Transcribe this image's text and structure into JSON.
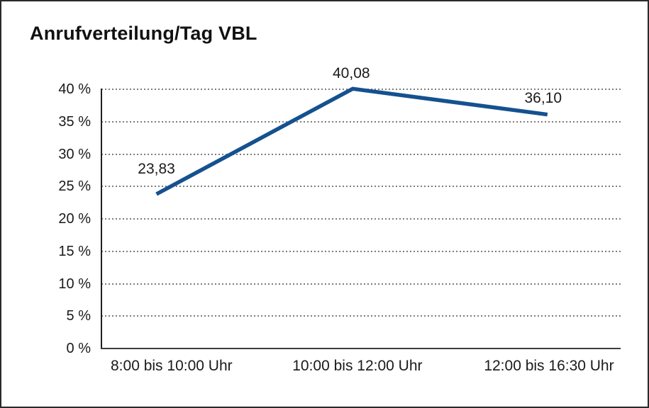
{
  "chart_data": {
    "type": "line",
    "title": "Anrufverteilung/Tag VBL",
    "categories": [
      "8:00 bis 10:00 Uhr",
      "10:00 bis 12:00 Uhr",
      "12:00 bis 16:30 Uhr"
    ],
    "values": [
      23.83,
      40.08,
      36.1
    ],
    "data_labels": [
      "23,83",
      "40,08",
      "36,10"
    ],
    "xlabel": "",
    "ylabel": "",
    "ylim": [
      0,
      40
    ],
    "y_step": 5,
    "y_tick_labels": [
      "0 %",
      "5 %",
      "10 %",
      "15 %",
      "20 %",
      "25 %",
      "30 %",
      "35 %",
      "40 %"
    ],
    "grid": "horizontal-dotted",
    "legend": "none",
    "line_color": "#15518f",
    "text_color": "#1a1a1a",
    "background_color": "#ffffff"
  }
}
